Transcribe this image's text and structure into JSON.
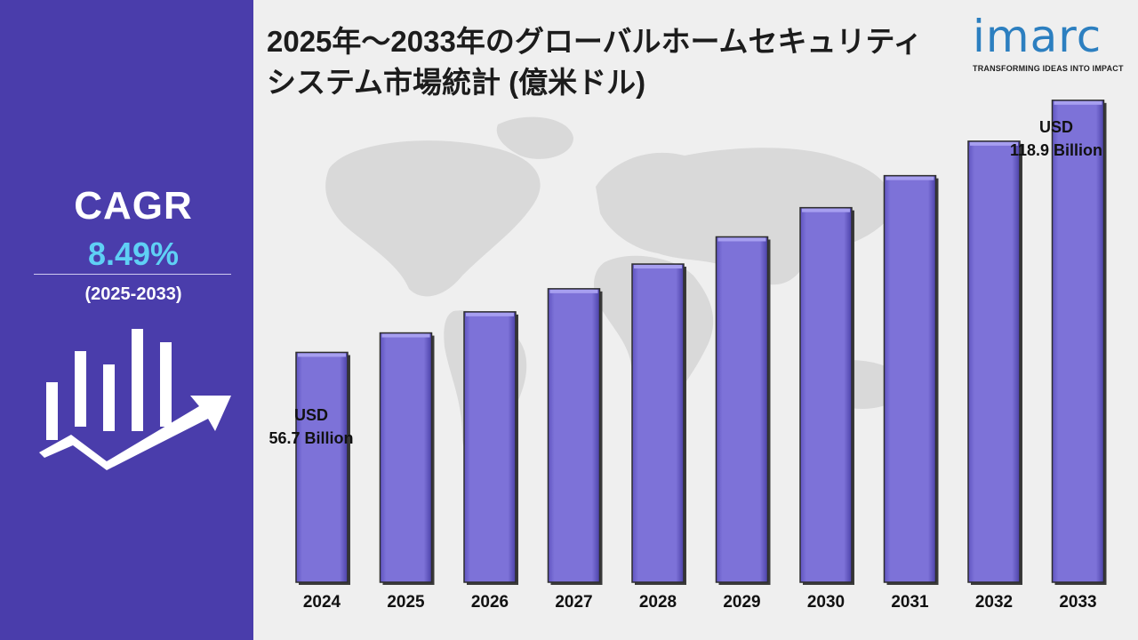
{
  "title": "2025年～2033年のグローバルホームセキュリティシステム市場統計 (億米ドル)",
  "logo": {
    "word": "imarc",
    "tagline": "TRANSFORMING IDEAS INTO IMPACT"
  },
  "cagr": {
    "label": "CAGR",
    "value": "8.49%",
    "period": "(2025-2033)"
  },
  "annotations": {
    "first": {
      "line1": "USD",
      "line2": "56.7 Billion"
    },
    "last": {
      "line1": "USD",
      "line2": "118.9 Billion"
    }
  },
  "colors": {
    "panel": "#4a3dab",
    "bar": "#7d72d8",
    "cagr_value": "#5fd0f5",
    "logo": "#2c7fc0",
    "map": "#d9d9d9"
  },
  "chart_data": {
    "type": "bar",
    "categories": [
      "2024",
      "2025",
      "2026",
      "2027",
      "2028",
      "2029",
      "2030",
      "2031",
      "2032",
      "2033"
    ],
    "values": [
      56.7,
      61.5,
      66.7,
      72.4,
      78.5,
      85.2,
      92.4,
      100.3,
      108.8,
      118.9
    ],
    "title": "2025年～2033年のグローバルホームセキュリティシステム市場統計 (億米ドル)",
    "xlabel": "",
    "ylabel": "",
    "ylim": [
      0,
      125
    ],
    "grid": false,
    "legend": "none"
  }
}
